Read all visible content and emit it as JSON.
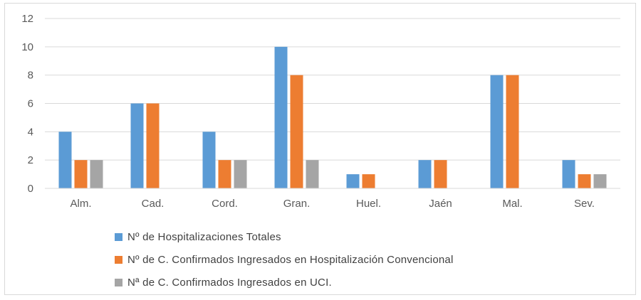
{
  "chart_data": {
    "type": "bar",
    "categories": [
      "Alm.",
      "Cad.",
      "Cord.",
      "Gran.",
      "Huel.",
      "Jaén",
      "Mal.",
      "Sev."
    ],
    "series": [
      {
        "name": "Nº de Hospitalizaciones Totales",
        "color": "#5b9bd5",
        "values": [
          4,
          6,
          4,
          10,
          1,
          2,
          8,
          2
        ]
      },
      {
        "name": "Nº de C. Confirmados Ingresados en Hospitalización Convencional",
        "color": "#ed7d31",
        "values": [
          2,
          6,
          2,
          8,
          1,
          2,
          8,
          1
        ]
      },
      {
        "name": "Nª de C. Confirmados Ingresados en UCI.",
        "color": "#a5a5a5",
        "values": [
          2,
          0,
          2,
          2,
          0,
          0,
          0,
          1
        ]
      }
    ],
    "yticks": [
      "0",
      "2",
      "4",
      "6",
      "8",
      "10",
      "12"
    ],
    "ylim": [
      0,
      12
    ],
    "grid": true,
    "legend_position": "bottom-left"
  }
}
